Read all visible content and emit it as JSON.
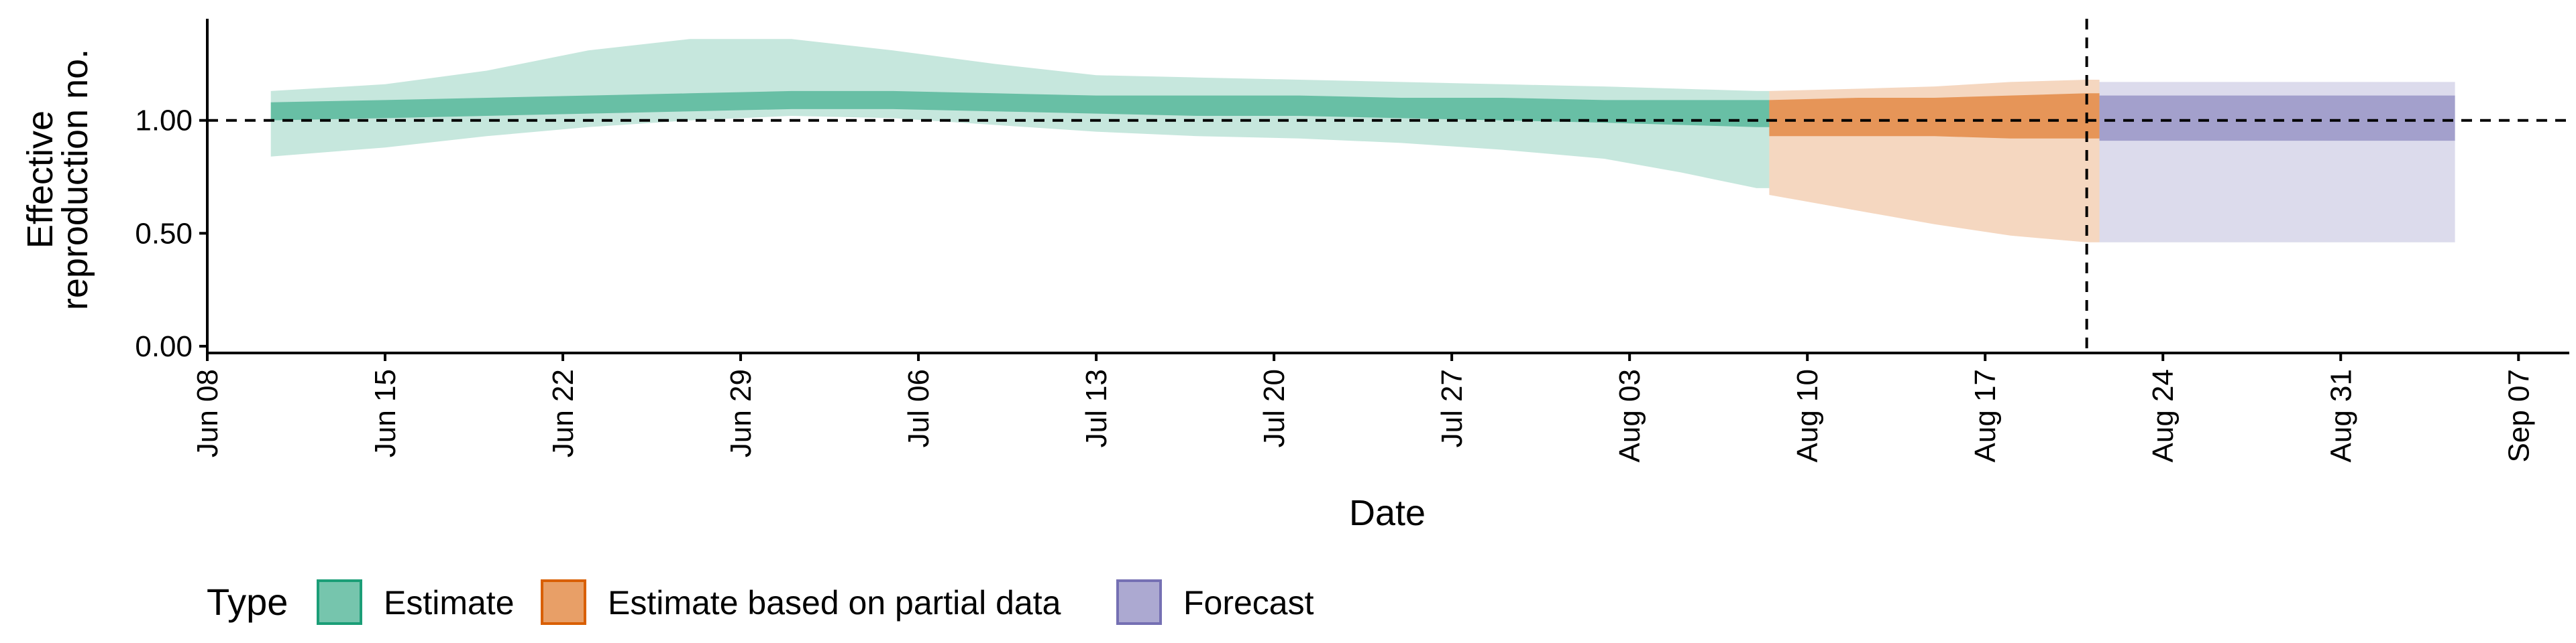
{
  "chart_data": {
    "type": "area",
    "xlabel": "Date",
    "ylabel_lines": [
      "Effective",
      "reproduction no."
    ],
    "x_ticks": [
      "Jun 08",
      "Jun 15",
      "Jun 22",
      "Jun 29",
      "Jul 06",
      "Jul 13",
      "Jul 20",
      "Jul 27",
      "Aug 03",
      "Aug 10",
      "Aug 17",
      "Aug 24",
      "Aug 31",
      "Sep 07"
    ],
    "x_tick_dates": [
      "2020-06-08",
      "2020-06-15",
      "2020-06-22",
      "2020-06-29",
      "2020-07-06",
      "2020-07-13",
      "2020-07-20",
      "2020-07-27",
      "2020-08-03",
      "2020-08-10",
      "2020-08-17",
      "2020-08-24",
      "2020-08-31",
      "2020-09-07"
    ],
    "y_ticks": [
      "0.00",
      "0.50",
      "1.00"
    ],
    "y_tick_values": [
      0,
      0.5,
      1.0
    ],
    "xlim": [
      "2020-06-08",
      "2020-09-09"
    ],
    "ylim": [
      -0.03,
      1.45
    ],
    "reference_line_y": 1.0,
    "vertical_line_date": "2020-08-21",
    "grid": false,
    "legend": {
      "title": "Type",
      "position": "bottom-left",
      "items": [
        {
          "label": "Estimate",
          "color": "#1B9E77"
        },
        {
          "label": "Estimate based on partial data",
          "color": "#D95F02"
        },
        {
          "label": "Forecast",
          "color": "#7570B3"
        }
      ]
    },
    "series": [
      {
        "legend_label": "Estimate",
        "color": "#1B9E77",
        "x": [
          "2020-06-11",
          "2020-06-15",
          "2020-06-19",
          "2020-06-23",
          "2020-06-27",
          "2020-07-01",
          "2020-07-05",
          "2020-07-09",
          "2020-07-13",
          "2020-07-17",
          "2020-07-21",
          "2020-07-25",
          "2020-07-29",
          "2020-08-02",
          "2020-08-05",
          "2020-08-08"
        ],
        "outer_upper": [
          1.13,
          1.16,
          1.22,
          1.31,
          1.36,
          1.36,
          1.31,
          1.25,
          1.2,
          1.19,
          1.18,
          1.17,
          1.16,
          1.15,
          1.14,
          1.13
        ],
        "outer_lower": [
          0.84,
          0.88,
          0.93,
          0.97,
          1.0,
          1.02,
          1.01,
          0.98,
          0.95,
          0.93,
          0.92,
          0.9,
          0.87,
          0.83,
          0.77,
          0.7
        ],
        "inner_upper": [
          1.08,
          1.09,
          1.1,
          1.11,
          1.12,
          1.13,
          1.13,
          1.12,
          1.11,
          1.11,
          1.11,
          1.1,
          1.1,
          1.09,
          1.09,
          1.09
        ],
        "inner_lower": [
          1.0,
          1.01,
          1.02,
          1.03,
          1.04,
          1.05,
          1.05,
          1.04,
          1.03,
          1.02,
          1.02,
          1.01,
          1.0,
          0.99,
          0.98,
          0.97
        ]
      },
      {
        "legend_label": "Estimate based on partial data",
        "color": "#D95F02",
        "x": [
          "2020-08-09",
          "2020-08-12",
          "2020-08-15",
          "2020-08-18",
          "2020-08-21"
        ],
        "outer_upper": [
          1.13,
          1.14,
          1.15,
          1.17,
          1.18
        ],
        "outer_lower": [
          0.67,
          0.6,
          0.54,
          0.49,
          0.46
        ],
        "inner_upper": [
          1.09,
          1.1,
          1.1,
          1.11,
          1.12
        ],
        "inner_lower": [
          0.93,
          0.93,
          0.93,
          0.92,
          0.92
        ]
      },
      {
        "legend_label": "Forecast",
        "color": "#7570B3",
        "x": [
          "2020-08-22",
          "2020-09-04"
        ],
        "outer_upper": [
          1.17,
          1.17
        ],
        "outer_lower": [
          0.46,
          0.46
        ],
        "inner_upper": [
          1.11,
          1.11
        ],
        "inner_lower": [
          0.91,
          0.91
        ]
      }
    ]
  }
}
